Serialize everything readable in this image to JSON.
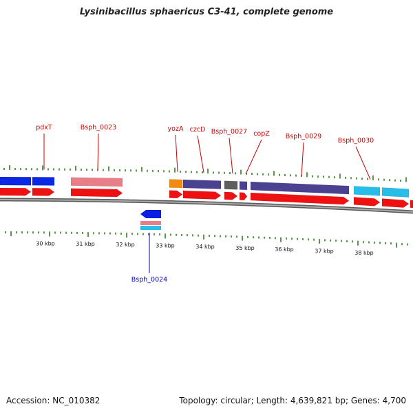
{
  "title": "Lysinibacillus sphaericus C3-41, complete genome",
  "footer": {
    "accession": "Accession: NC_010382",
    "topology": "Topology: circular; Length: 4,639,821 bp; Genes: 4,700"
  },
  "colors": {
    "label_top": "#cc0000",
    "label_bottom": "#0000cc",
    "tick": "#2e7d1f",
    "backbone": "#808080"
  },
  "gene_labels_top": [
    "pdxT",
    "Bsph_0023",
    "yozA",
    "czcD",
    "Bsph_0027",
    "copZ",
    "Bsph_0029",
    "Bsph_0030"
  ],
  "gene_labels_bottom": [
    "Bsph_0024"
  ],
  "kbp_ticks": [
    "30 kbp",
    "31 kbp",
    "32 kbp",
    "33 kbp",
    "34 kbp",
    "35 kbp",
    "36 kbp",
    "37 kbp",
    "38 kbp"
  ]
}
